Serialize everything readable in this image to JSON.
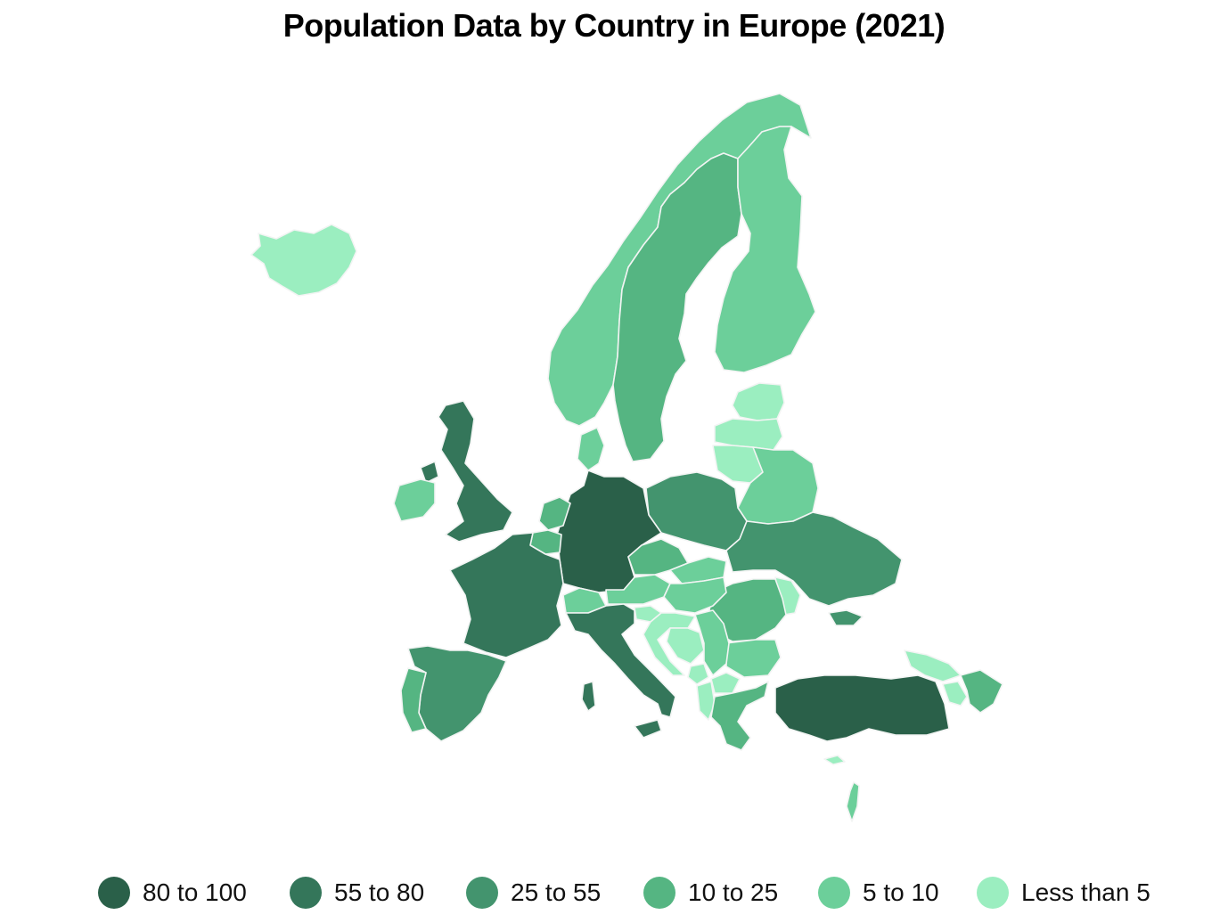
{
  "title": "Population Data by Country in Europe (2021)",
  "legend": [
    {
      "label": "80 to 100",
      "color": "#2a6049"
    },
    {
      "label": "55 to 80",
      "color": "#34765a"
    },
    {
      "label": "25 to 55",
      "color": "#43946e"
    },
    {
      "label": "10 to 25",
      "color": "#55b582"
    },
    {
      "label": "5 to 10",
      "color": "#6ccf9a"
    },
    {
      "label": "Less than 5",
      "color": "#9beec0"
    }
  ],
  "countries": [
    {
      "id": "germany",
      "bin": 0
    },
    {
      "id": "turkey",
      "bin": 0
    },
    {
      "id": "united-kingdom",
      "bin": 1
    },
    {
      "id": "france",
      "bin": 1
    },
    {
      "id": "italy",
      "bin": 1
    },
    {
      "id": "spain",
      "bin": 2
    },
    {
      "id": "poland",
      "bin": 2
    },
    {
      "id": "ukraine",
      "bin": 2
    },
    {
      "id": "crimea",
      "bin": 2
    },
    {
      "id": "romania",
      "bin": 3
    },
    {
      "id": "netherlands",
      "bin": 3
    },
    {
      "id": "belgium",
      "bin": 3
    },
    {
      "id": "czechia",
      "bin": 3
    },
    {
      "id": "sweden",
      "bin": 3
    },
    {
      "id": "portugal",
      "bin": 3
    },
    {
      "id": "greece",
      "bin": 3
    },
    {
      "id": "azerbaijan",
      "bin": 3
    },
    {
      "id": "norway",
      "bin": 4
    },
    {
      "id": "finland",
      "bin": 4
    },
    {
      "id": "denmark",
      "bin": 4
    },
    {
      "id": "austria",
      "bin": 4
    },
    {
      "id": "switzerland",
      "bin": 4
    },
    {
      "id": "hungary",
      "bin": 4
    },
    {
      "id": "serbia",
      "bin": 4
    },
    {
      "id": "bulgaria",
      "bin": 4
    },
    {
      "id": "belarus",
      "bin": 4
    },
    {
      "id": "ireland",
      "bin": 4
    },
    {
      "id": "slovakia",
      "bin": 4
    },
    {
      "id": "israel",
      "bin": 4
    },
    {
      "id": "iceland",
      "bin": 5
    },
    {
      "id": "estonia",
      "bin": 5
    },
    {
      "id": "latvia",
      "bin": 5
    },
    {
      "id": "lithuania",
      "bin": 5
    },
    {
      "id": "moldova",
      "bin": 5
    },
    {
      "id": "slovenia",
      "bin": 5
    },
    {
      "id": "croatia",
      "bin": 5
    },
    {
      "id": "bosnia",
      "bin": 5
    },
    {
      "id": "montenegro",
      "bin": 5
    },
    {
      "id": "north-macedonia",
      "bin": 5
    },
    {
      "id": "albania",
      "bin": 5
    },
    {
      "id": "georgia",
      "bin": 5
    },
    {
      "id": "armenia",
      "bin": 5
    },
    {
      "id": "cyprus",
      "bin": 5
    }
  ]
}
